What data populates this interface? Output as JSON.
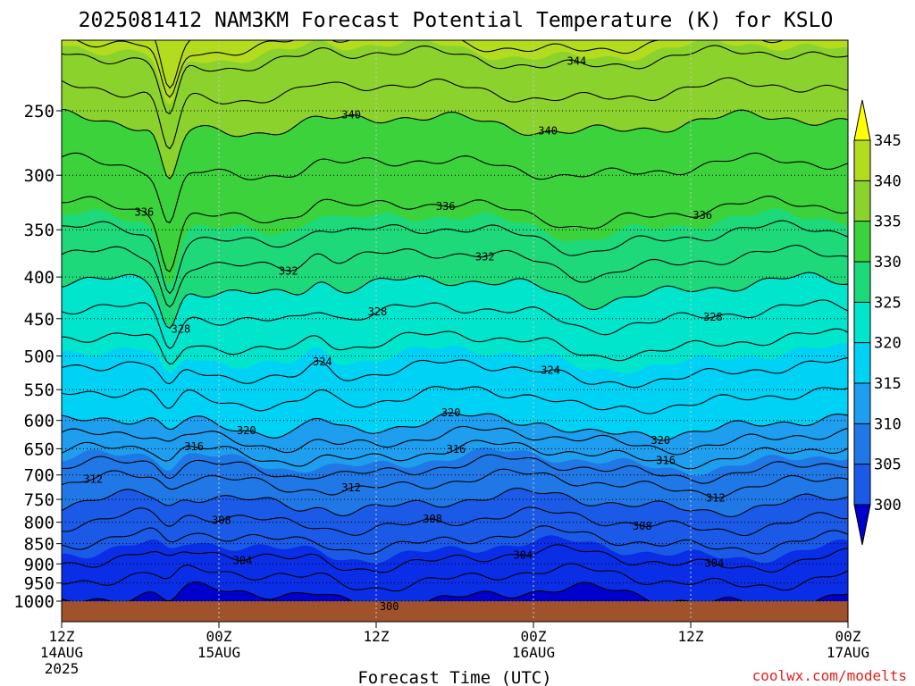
{
  "chart_data": {
    "type": "heatmap",
    "title": "2025081412 NAM3KM Forecast Potential Temperature (K) for KSLO",
    "xlabel": "Forecast Time (UTC)",
    "ylabel": "",
    "credit": "coolwx.com/modelts",
    "x_ticks": [
      {
        "label": "12Z",
        "sub": "14AUG",
        "sub2": "2025",
        "hour": 0
      },
      {
        "label": "00Z",
        "sub": "15AUG",
        "sub2": "",
        "hour": 12
      },
      {
        "label": "12Z",
        "sub": "",
        "sub2": "",
        "hour": 24
      },
      {
        "label": "00Z",
        "sub": "16AUG",
        "sub2": "",
        "hour": 36
      },
      {
        "label": "12Z",
        "sub": "",
        "sub2": "",
        "hour": 48
      },
      {
        "label": "00Z",
        "sub": "17AUG",
        "sub2": "",
        "hour": 60
      }
    ],
    "xlim": [
      0,
      60
    ],
    "y_ticks": [
      250,
      300,
      350,
      400,
      450,
      500,
      550,
      600,
      650,
      700,
      750,
      800,
      850,
      900,
      950,
      1000
    ],
    "ylim_hpa": [
      200,
      1025
    ],
    "colorbar": {
      "levels": [
        300,
        305,
        310,
        315,
        320,
        325,
        330,
        335,
        340,
        345
      ],
      "colors": [
        "#0000cc",
        "#0a2de6",
        "#1a5ae6",
        "#1f78e6",
        "#1e9eee",
        "#00d2f5",
        "#00e5cc",
        "#1ed97a",
        "#3cd23c",
        "#8cd22d",
        "#b4dc1e",
        "#ffff00"
      ]
    },
    "isotherms": [
      {
        "level": 300,
        "labels": [
          {
            "hour": 25.0
          }
        ]
      },
      {
        "level": 304,
        "labels": [
          {
            "hour": 13.8
          },
          {
            "hour": 35.2
          },
          {
            "hour": 49.8
          }
        ]
      },
      {
        "level": 308,
        "labels": [
          {
            "hour": 12.2
          },
          {
            "hour": 28.3
          },
          {
            "hour": 44.3
          }
        ]
      },
      {
        "level": 312,
        "labels": [
          {
            "hour": 2.4
          },
          {
            "hour": 22.1
          },
          {
            "hour": 49.9
          }
        ]
      },
      {
        "level": 316,
        "labels": [
          {
            "hour": 10.1
          },
          {
            "hour": 30.1
          },
          {
            "hour": 46.1
          }
        ]
      },
      {
        "level": 320,
        "labels": [
          {
            "hour": 14.1
          },
          {
            "hour": 29.7
          },
          {
            "hour": 45.7
          }
        ]
      },
      {
        "level": 324,
        "labels": [
          {
            "hour": 19.9
          },
          {
            "hour": 37.3
          }
        ]
      },
      {
        "level": 328,
        "labels": [
          {
            "hour": 9.1
          },
          {
            "hour": 24.1
          },
          {
            "hour": 49.7
          }
        ]
      },
      {
        "level": 332,
        "labels": [
          {
            "hour": 17.3
          },
          {
            "hour": 32.3
          }
        ]
      },
      {
        "level": 336,
        "labels": [
          {
            "hour": 6.3
          },
          {
            "hour": 29.3
          },
          {
            "hour": 48.9
          }
        ]
      },
      {
        "level": 340,
        "labels": [
          {
            "hour": 22.1
          },
          {
            "hour": 37.1
          }
        ]
      },
      {
        "level": 344,
        "labels": [
          {
            "hour": 39.3
          }
        ]
      }
    ],
    "grid": "dotted"
  }
}
